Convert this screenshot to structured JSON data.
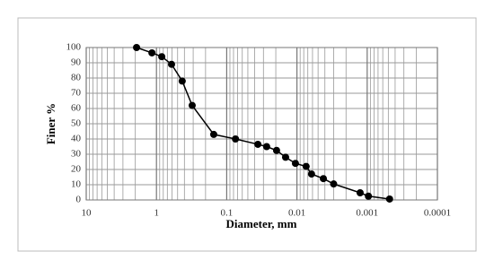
{
  "chart_data": {
    "type": "line",
    "x_label": "Diameter, mm",
    "y_label": "Finer %",
    "x": [
      1.92,
      1.16,
      0.84,
      0.61,
      0.43,
      0.31,
      0.153,
      0.075,
      0.036,
      0.027,
      0.0195,
      0.0145,
      0.0105,
      0.0074,
      0.0062,
      0.0042,
      0.003,
      0.00126,
      0.00096,
      0.00048
    ],
    "series": [
      {
        "color": "#000000",
        "values": [
          100,
          96.5,
          94,
          89,
          78,
          62,
          43,
          40,
          36.5,
          35,
          32.5,
          28,
          24,
          22,
          17,
          14,
          10.5,
          4.7,
          2.5,
          0.6
        ]
      }
    ],
    "xscale": "log",
    "xlim": [
      10,
      0.0001
    ],
    "xticks": [
      10,
      1,
      0.1,
      0.01,
      0.001,
      0.0001
    ],
    "ylim": [
      0,
      100
    ],
    "yticks": [
      0,
      10,
      20,
      30,
      40,
      50,
      60,
      70,
      80,
      90,
      100
    ],
    "grid": true,
    "minor_grid": true
  }
}
